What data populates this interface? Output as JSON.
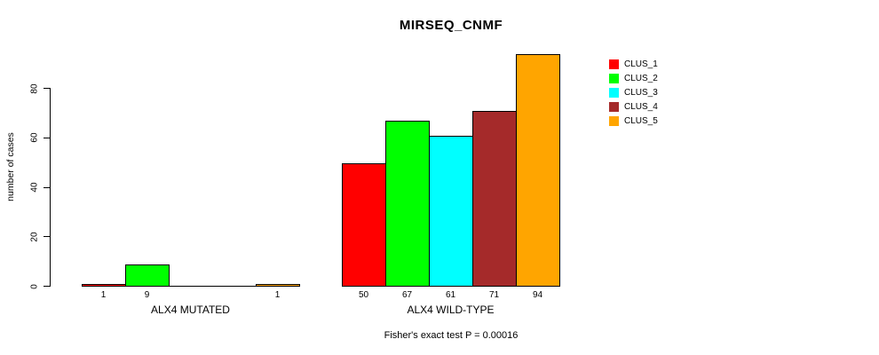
{
  "chart_data": {
    "type": "bar",
    "title": "MIRSEQ_CNMF",
    "ylabel": "number of cases",
    "xlabel": "",
    "categories": [
      "ALX4 MUTATED",
      "ALX4 WILD-TYPE"
    ],
    "series": [
      {
        "name": "CLUS_1",
        "color": "#ff0000",
        "values": [
          1,
          50
        ]
      },
      {
        "name": "CLUS_2",
        "color": "#00ff00",
        "values": [
          9,
          67
        ]
      },
      {
        "name": "CLUS_3",
        "color": "#00ffff",
        "values": [
          0,
          61
        ]
      },
      {
        "name": "CLUS_4",
        "color": "#a52a2a",
        "values": [
          0,
          71
        ]
      },
      {
        "name": "CLUS_5",
        "color": "#ffa500",
        "values": [
          1,
          94
        ]
      }
    ],
    "yticks": [
      0,
      20,
      40,
      60,
      80
    ],
    "ylim": [
      0,
      94
    ],
    "grid": false,
    "legend_position": "right",
    "bar_borders": "#000000",
    "zero_value_bars_unlabeled": true
  },
  "footer": {
    "text": "Fisher's exact test P = 0.00016"
  }
}
